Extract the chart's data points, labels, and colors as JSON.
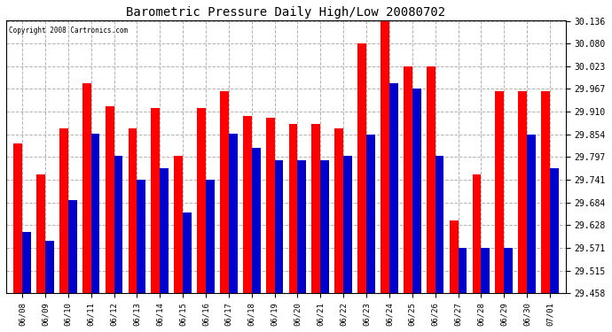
{
  "title": "Barometric Pressure Daily High/Low 20080702",
  "copyright": "Copyright 2008 Cartronics.com",
  "dates": [
    "06/08",
    "06/09",
    "06/10",
    "06/11",
    "06/12",
    "06/13",
    "06/14",
    "06/15",
    "06/16",
    "06/17",
    "06/18",
    "06/19",
    "06/20",
    "06/21",
    "06/22",
    "06/23",
    "06/24",
    "06/25",
    "06/26",
    "06/27",
    "06/28",
    "06/29",
    "06/30",
    "07/01"
  ],
  "highs": [
    29.83,
    29.755,
    29.868,
    29.98,
    29.924,
    29.868,
    29.92,
    29.8,
    29.92,
    29.96,
    29.9,
    29.895,
    29.88,
    29.88,
    29.868,
    30.08,
    30.136,
    30.023,
    30.023,
    29.64,
    29.755,
    29.96,
    29.96,
    29.96
  ],
  "lows": [
    29.61,
    29.59,
    29.69,
    29.856,
    29.8,
    29.741,
    29.77,
    29.66,
    29.741,
    29.856,
    29.82,
    29.79,
    29.79,
    29.79,
    29.8,
    29.854,
    29.98,
    29.967,
    29.8,
    29.571,
    29.571,
    29.571,
    29.854,
    29.77
  ],
  "high_color": "#ff0000",
  "low_color": "#0000cc",
  "bg_color": "#ffffff",
  "plot_bg_color": "#ffffff",
  "grid_color": "#aaaaaa",
  "yticks": [
    29.458,
    29.515,
    29.571,
    29.628,
    29.684,
    29.741,
    29.797,
    29.854,
    29.91,
    29.967,
    30.023,
    30.08,
    30.136
  ],
  "ylim_min": 29.458,
  "ylim_max": 30.136,
  "bar_width": 0.38
}
